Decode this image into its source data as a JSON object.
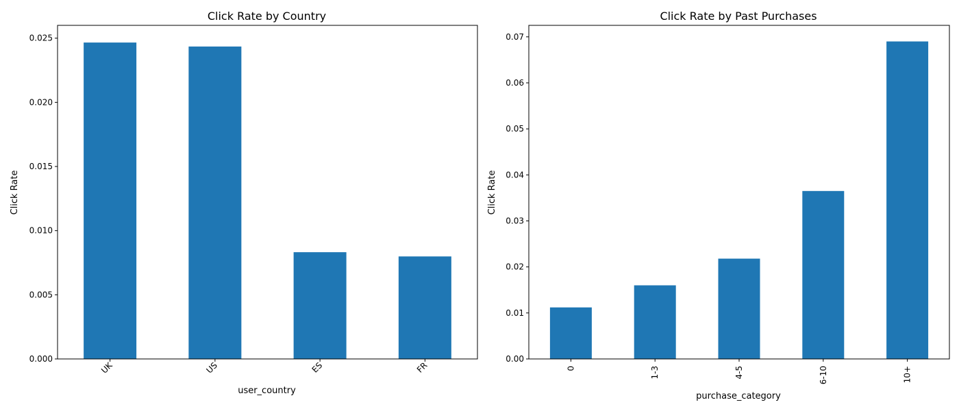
{
  "colors": {
    "bar": "#1f77b4",
    "axis": "#000000",
    "background": "#ffffff"
  },
  "chart_data": [
    {
      "type": "bar",
      "title": "Click Rate by Country",
      "xlabel": "user_country",
      "ylabel": "Click Rate",
      "categories": [
        "UK",
        "US",
        "ES",
        "FR"
      ],
      "values": [
        0.02466,
        0.02435,
        0.00832,
        0.00799
      ],
      "ylim": [
        0,
        0.026
      ],
      "yticks": [
        0.0,
        0.005,
        0.01,
        0.015,
        0.02,
        0.025
      ],
      "ytick_labels": [
        "0.000",
        "0.005",
        "0.010",
        "0.015",
        "0.020",
        "0.025"
      ],
      "xtick_rotation": 45,
      "grid": false,
      "legend": "none"
    },
    {
      "type": "bar",
      "title": "Click Rate by Past Purchases",
      "xlabel": "purchase_category",
      "ylabel": "Click Rate",
      "categories": [
        "0",
        "1-3",
        "4-5",
        "6-10",
        "10+"
      ],
      "values": [
        0.0112,
        0.016,
        0.0218,
        0.0365,
        0.069
      ],
      "ylim": [
        0,
        0.0725
      ],
      "yticks": [
        0.0,
        0.01,
        0.02,
        0.03,
        0.04,
        0.05,
        0.06,
        0.07
      ],
      "ytick_labels": [
        "0.00",
        "0.01",
        "0.02",
        "0.03",
        "0.04",
        "0.05",
        "0.06",
        "0.07"
      ],
      "xtick_rotation": 90,
      "grid": false,
      "legend": "none"
    }
  ]
}
